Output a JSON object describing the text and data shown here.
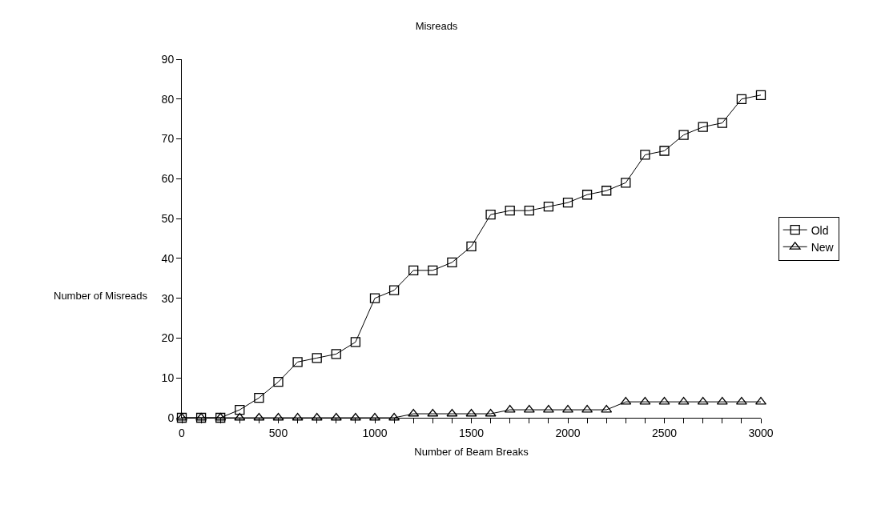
{
  "chart_data": {
    "type": "line",
    "title": "Misreads",
    "xlabel": "Number of Beam Breaks",
    "ylabel": "Number of Misreads",
    "x": [
      0,
      100,
      200,
      300,
      400,
      500,
      600,
      700,
      800,
      900,
      1000,
      1100,
      1200,
      1300,
      1400,
      1500,
      1600,
      1700,
      1800,
      1900,
      2000,
      2100,
      2200,
      2300,
      2400,
      2500,
      2600,
      2700,
      2800,
      2900,
      3000
    ],
    "series": [
      {
        "name": "Old",
        "color": "#000000",
        "marker": "square",
        "values": [
          0,
          0,
          0,
          2,
          5,
          9,
          14,
          15,
          16,
          19,
          30,
          32,
          37,
          37,
          39,
          43,
          51,
          52,
          52,
          53,
          54,
          56,
          57,
          59,
          66,
          67,
          71,
          73,
          74,
          80,
          81
        ]
      },
      {
        "name": "New",
        "color": "#000000",
        "marker": "triangle",
        "values": [
          0,
          0,
          0,
          0,
          0,
          0,
          0,
          0,
          0,
          0,
          0,
          0,
          1,
          1,
          1,
          1,
          1,
          2,
          2,
          2,
          2,
          2,
          2,
          4,
          4,
          4,
          4,
          4,
          4,
          4,
          4
        ]
      }
    ],
    "xlim": [
      0,
      3000
    ],
    "ylim": [
      0,
      90
    ],
    "xticks": [
      0,
      {
        "value": 100,
        "label": null
      },
      {
        "value": 200,
        "label": null
      },
      {
        "value": 300,
        "label": null
      },
      {
        "value": 400,
        "label": null
      },
      500,
      {
        "value": 600,
        "label": null
      },
      {
        "value": 700,
        "label": null
      },
      {
        "value": 800,
        "label": null
      },
      {
        "value": 900,
        "label": null
      },
      1000,
      {
        "value": 1100,
        "label": null
      },
      {
        "value": 1200,
        "label": null
      },
      {
        "value": 1300,
        "label": null
      },
      {
        "value": 1400,
        "label": null
      },
      1500,
      {
        "value": 1600,
        "label": null
      },
      {
        "value": 1700,
        "label": null
      },
      {
        "value": 1800,
        "label": null
      },
      {
        "value": 1900,
        "label": null
      },
      2000,
      {
        "value": 2100,
        "label": null
      },
      {
        "value": 2200,
        "label": null
      },
      {
        "value": 2300,
        "label": null
      },
      {
        "value": 2400,
        "label": null
      },
      2500,
      {
        "value": 2600,
        "label": null
      },
      {
        "value": 2700,
        "label": null
      },
      {
        "value": 2800,
        "label": null
      },
      {
        "value": 2900,
        "label": null
      },
      3000
    ],
    "yticks": [
      0,
      10,
      20,
      30,
      40,
      50,
      60,
      70,
      80,
      90
    ],
    "legend": "right",
    "line_style": "solid"
  }
}
